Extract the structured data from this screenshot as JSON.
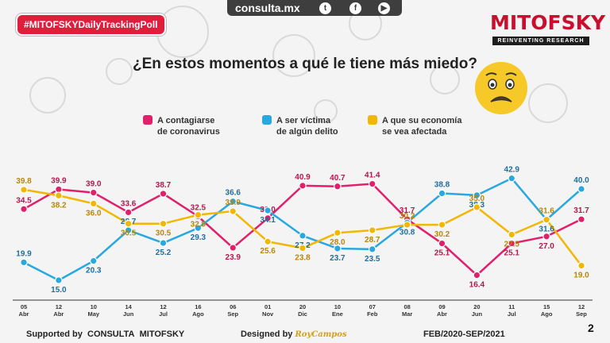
{
  "header": {
    "site": "consulta.mx",
    "social": [
      {
        "name": "twitter-icon",
        "glyph": "t"
      },
      {
        "name": "facebook-icon",
        "glyph": "f"
      },
      {
        "name": "youtube-icon",
        "glyph": "▶"
      }
    ],
    "hashtag": "#MITOFSKYDailyTrackingPoll",
    "brand": "MITOFSKY",
    "brand_sub": "REINVENTING RESEARCH"
  },
  "legend": [
    {
      "line1": "A contagiarse",
      "line2": "de coronavirus"
    },
    {
      "line1": "A ser víctima",
      "line2": "de algún delito"
    },
    {
      "line1": "A que su economía",
      "line2": "se vea afectada"
    }
  ],
  "footer": {
    "supported_label": "Supported by",
    "consulta": "CONSULTA",
    "mitofsky": "MITOFSKY",
    "designed_label": "Designed by",
    "designer": "RoyCampos",
    "period": "FEB/2020-SEP/2021",
    "page": "2"
  },
  "chart_data": {
    "type": "line",
    "title": "¿En estos momentos a qué le tiene más miedo?",
    "categories": [
      [
        "05",
        "Abr"
      ],
      [
        "12",
        "Abr"
      ],
      [
        "10",
        "May"
      ],
      [
        "14",
        "Jun"
      ],
      [
        "12",
        "Jul"
      ],
      [
        "16",
        "Ago"
      ],
      [
        "06",
        "Sep"
      ],
      [
        "01",
        "Nov"
      ],
      [
        "20",
        "Dic"
      ],
      [
        "10",
        "Ene"
      ],
      [
        "07",
        "Feb"
      ],
      [
        "08",
        "Mar"
      ],
      [
        "09",
        "Abr"
      ],
      [
        "20",
        "Jun"
      ],
      [
        "11",
        "Jul"
      ],
      [
        "15",
        "Ago"
      ],
      [
        "12",
        "Sep"
      ]
    ],
    "series": [
      {
        "name": "A contagiarse de coronavirus",
        "color": "#e0206a",
        "values": [
          34.5,
          39.9,
          39.0,
          33.6,
          38.7,
          32.5,
          23.9,
          32.0,
          40.9,
          40.7,
          41.4,
          31.7,
          25.1,
          16.4,
          25.1,
          27.0,
          31.7
        ]
      },
      {
        "name": "A ser víctima de algún delito",
        "color": "#29a8e0",
        "values": [
          19.9,
          15.0,
          20.3,
          28.7,
          25.2,
          29.3,
          36.6,
          34.1,
          27.2,
          23.7,
          23.5,
          30.8,
          38.8,
          38.3,
          42.9,
          31.6,
          40.0
        ]
      },
      {
        "name": "A que su economía se vea afectada",
        "color": "#f2b705",
        "values": [
          39.8,
          38.2,
          36.0,
          30.5,
          30.5,
          32.9,
          33.9,
          25.6,
          23.8,
          28.0,
          28.7,
          30.2,
          30.2,
          35.0,
          27.5,
          31.6,
          19.0
        ]
      }
    ],
    "ylim": [
      10,
      45
    ],
    "grid": false
  }
}
